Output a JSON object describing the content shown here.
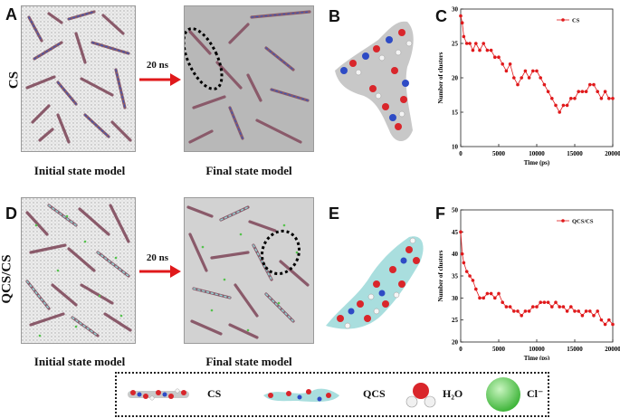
{
  "panels": {
    "A": "A",
    "B": "B",
    "C": "C",
    "D": "D",
    "E": "E",
    "F": "F"
  },
  "rows": {
    "top": "CS",
    "bottom": "QCS/CS"
  },
  "arrow_label": "20 ns",
  "captions": {
    "initial": "Initial state model",
    "final": "Final state model"
  },
  "legend": {
    "cs": "CS",
    "qcs": "QCS",
    "h2o": "H₂O",
    "cl": "Cl⁻"
  },
  "colors": {
    "series": "#e0191b",
    "arrow": "#e0191b",
    "grey_box": "#b8b8b8"
  },
  "chart_data": [
    {
      "type": "line",
      "title": "",
      "xlabel": "Time (ps)",
      "ylabel": "Number of clusters",
      "xlim": [
        0,
        20000
      ],
      "ylim": [
        10,
        30
      ],
      "xticks": [
        0,
        5000,
        10000,
        15000,
        20000
      ],
      "yticks": [
        10,
        15,
        20,
        25,
        30
      ],
      "legend_position": "top-right",
      "series": [
        {
          "name": "CS",
          "x": [
            0,
            200,
            400,
            800,
            1200,
            1600,
            2000,
            2500,
            3000,
            3500,
            4000,
            4500,
            5000,
            5500,
            6000,
            6500,
            7000,
            7500,
            8000,
            8500,
            9000,
            9500,
            10000,
            10500,
            11000,
            11500,
            12000,
            12500,
            13000,
            13500,
            14000,
            14500,
            15000,
            15500,
            16000,
            16500,
            17000,
            17500,
            18000,
            18500,
            19000,
            19500,
            20000
          ],
          "values": [
            29,
            28,
            26,
            25,
            25,
            24,
            25,
            24,
            25,
            24,
            24,
            23,
            23,
            22,
            21,
            22,
            20,
            19,
            20,
            21,
            20,
            21,
            21,
            20,
            19,
            18,
            17,
            16,
            15,
            16,
            16,
            17,
            17,
            18,
            18,
            18,
            19,
            19,
            18,
            17,
            18,
            17,
            17
          ]
        }
      ]
    },
    {
      "type": "line",
      "title": "",
      "xlabel": "Time (ps)",
      "ylabel": "Number of clusters",
      "xlim": [
        0,
        20000
      ],
      "ylim": [
        20,
        50
      ],
      "xticks": [
        0,
        5000,
        10000,
        15000,
        20000
      ],
      "yticks": [
        20,
        25,
        30,
        35,
        40,
        45,
        50
      ],
      "legend_position": "top-right",
      "series": [
        {
          "name": "QCS/CS",
          "x": [
            0,
            200,
            400,
            800,
            1200,
            1600,
            2000,
            2500,
            3000,
            3500,
            4000,
            4500,
            5000,
            5500,
            6000,
            6500,
            7000,
            7500,
            8000,
            8500,
            9000,
            9500,
            10000,
            10500,
            11000,
            11500,
            12000,
            12500,
            13000,
            13500,
            14000,
            14500,
            15000,
            15500,
            16000,
            16500,
            17000,
            17500,
            18000,
            18500,
            19000,
            19500,
            20000
          ],
          "values": [
            45,
            40,
            38,
            36,
            35,
            34,
            32,
            30,
            30,
            31,
            31,
            30,
            31,
            29,
            28,
            28,
            27,
            27,
            26,
            27,
            27,
            28,
            28,
            29,
            29,
            29,
            28,
            29,
            28,
            28,
            27,
            28,
            27,
            27,
            26,
            27,
            27,
            26,
            27,
            25,
            24,
            25,
            24
          ]
        }
      ]
    }
  ]
}
